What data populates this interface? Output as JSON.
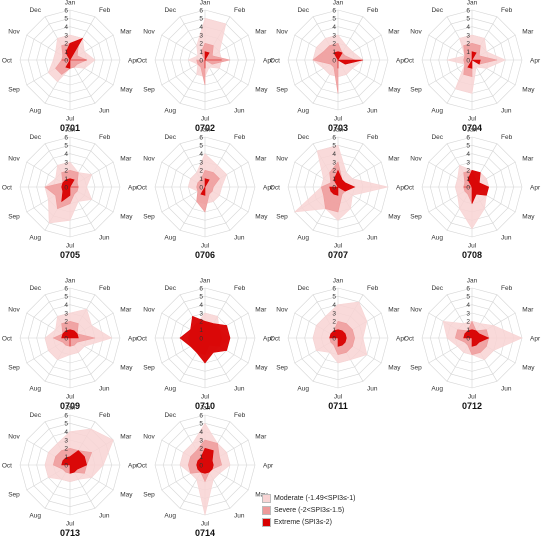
{
  "chart_data": {
    "type": "radar",
    "axes": [
      "Jan",
      "Feb",
      "Mar",
      "Apr",
      "May",
      "Jun",
      "Jul",
      "Aug",
      "Sep",
      "Oct",
      "Nov",
      "Dec"
    ],
    "radial_ticks": [
      "0",
      "1",
      "2",
      "3",
      "4",
      "5",
      "6"
    ],
    "rmax": 6,
    "legend": [
      {
        "key": "moderate",
        "label": "Moderate (-1.49<SPI3≤-1)",
        "color": "#f8d4d4"
      },
      {
        "key": "severe",
        "label": "Severe (-2<SPI3≤-1.5)",
        "color": "#ee9a9a"
      },
      {
        "key": "extreme",
        "label": "Extreme (SPI3≤-2)",
        "color": "#d80000"
      }
    ],
    "charts": [
      {
        "id": "0701",
        "moderate": [
          3,
          3,
          2,
          3,
          2,
          1,
          1,
          3,
          3,
          2,
          2,
          3
        ],
        "severe": [
          2,
          2,
          1,
          2,
          1,
          1,
          1,
          2,
          2,
          1,
          1,
          2
        ],
        "extreme": [
          2,
          3,
          0,
          2,
          0,
          0,
          1,
          1,
          0,
          1,
          0,
          1
        ]
      },
      {
        "id": "0702",
        "moderate": [
          5,
          5,
          2,
          2,
          2,
          1,
          2,
          2,
          1,
          2,
          1,
          2
        ],
        "severe": [
          2,
          2,
          1,
          3,
          1,
          0,
          3,
          1,
          1,
          1,
          0,
          1
        ],
        "extreme": [
          1,
          1,
          0,
          2,
          0,
          0,
          1,
          0,
          0,
          0,
          0,
          0
        ]
      },
      {
        "id": "0703",
        "moderate": [
          3,
          2,
          2,
          3,
          2,
          2,
          2,
          2,
          2,
          3,
          3,
          3
        ],
        "severe": [
          2,
          1,
          1,
          2,
          1,
          0,
          4,
          1,
          1,
          3,
          2,
          2
        ],
        "extreme": [
          1,
          1,
          0,
          3,
          1,
          0,
          1,
          0,
          0,
          0,
          0,
          1
        ]
      },
      {
        "id": "0704",
        "moderate": [
          3,
          3,
          2,
          4,
          2,
          1,
          4,
          4,
          1,
          3,
          1,
          3
        ],
        "severe": [
          2,
          2,
          1,
          3,
          1,
          0,
          2,
          2,
          1,
          1,
          1,
          2
        ],
        "extreme": [
          1,
          1,
          0,
          1,
          1,
          0,
          1,
          1,
          0,
          0,
          0,
          0
        ]
      },
      {
        "id": "0705",
        "moderate": [
          3,
          2,
          3,
          2,
          3,
          2,
          4,
          5,
          3,
          3,
          2,
          3
        ],
        "severe": [
          2,
          2,
          1,
          1,
          1,
          1,
          2,
          3,
          2,
          3,
          1,
          2
        ],
        "extreme": [
          1,
          1,
          0,
          1,
          0,
          0,
          1,
          2,
          1,
          1,
          1,
          1
        ]
      },
      {
        "id": "0706",
        "moderate": [
          4,
          3,
          3,
          2,
          2,
          2,
          2,
          2,
          1,
          2,
          2,
          2
        ],
        "severe": [
          2,
          2,
          2,
          1,
          1,
          1,
          3,
          2,
          1,
          1,
          1,
          1
        ],
        "extreme": [
          1,
          1,
          0,
          0,
          0,
          0,
          1,
          1,
          0,
          0,
          0,
          0
        ]
      },
      {
        "id": "0707",
        "moderate": [
          5,
          2,
          2,
          6,
          2,
          3,
          4,
          3,
          6,
          2,
          2,
          5
        ],
        "severe": [
          3,
          1,
          1,
          1,
          1,
          1,
          3,
          3,
          2,
          2,
          1,
          2
        ],
        "extreme": [
          2,
          1,
          1,
          2,
          1,
          0,
          1,
          1,
          1,
          1,
          0,
          1
        ]
      },
      {
        "id": "0708",
        "moderate": [
          2,
          2,
          2,
          2,
          2,
          3,
          5,
          3,
          2,
          2,
          2,
          3
        ],
        "severe": [
          2,
          1,
          1,
          2,
          1,
          1,
          2,
          1,
          1,
          1,
          1,
          2
        ],
        "extreme": [
          2,
          2,
          1,
          2,
          2,
          1,
          2,
          0,
          0,
          1,
          0,
          1
        ]
      },
      {
        "id": "0709",
        "moderate": [
          3,
          4,
          3,
          5,
          2,
          2,
          2,
          3,
          3,
          3,
          2,
          3
        ],
        "severe": [
          2,
          2,
          1,
          3,
          1,
          1,
          1,
          1,
          1,
          2,
          1,
          2
        ],
        "extreme": [
          1,
          1,
          1,
          1,
          0,
          0,
          1,
          0,
          0,
          1,
          1,
          1
        ]
      },
      {
        "id": "0710",
        "moderate": [
          3,
          3,
          2,
          3,
          2,
          2,
          2,
          2,
          2,
          2,
          2,
          2
        ],
        "severe": [
          2,
          2,
          2,
          2,
          2,
          1,
          2,
          2,
          2,
          2,
          2,
          2
        ],
        "extreme": [
          2,
          2,
          3,
          3,
          3,
          2,
          3,
          2,
          2,
          3,
          2,
          3
        ]
      },
      {
        "id": "0711",
        "moderate": [
          4,
          5,
          4,
          3,
          4,
          3,
          3,
          2,
          3,
          3,
          3,
          3
        ],
        "severe": [
          2,
          2,
          2,
          2,
          2,
          2,
          2,
          1,
          1,
          1,
          1,
          1
        ],
        "extreme": [
          1,
          1,
          1,
          1,
          1,
          1,
          1,
          0,
          0,
          1,
          1,
          1
        ]
      },
      {
        "id": "0712",
        "moderate": [
          2,
          2,
          3,
          6,
          3,
          3,
          2,
          2,
          2,
          3,
          4,
          2
        ],
        "severe": [
          2,
          1,
          2,
          2,
          2,
          2,
          2,
          1,
          1,
          2,
          2,
          1
        ],
        "extreme": [
          1,
          1,
          1,
          2,
          1,
          1,
          1,
          0,
          0,
          1,
          1,
          1
        ]
      },
      {
        "id": "0713",
        "moderate": [
          4,
          5,
          6,
          4,
          3,
          2,
          2,
          2,
          3,
          3,
          3,
          3
        ],
        "severe": [
          2,
          2,
          3,
          2,
          2,
          1,
          1,
          1,
          1,
          2,
          2,
          2
        ],
        "extreme": [
          1,
          2,
          2,
          2,
          1,
          1,
          1,
          0,
          0,
          1,
          1,
          1
        ]
      },
      {
        "id": "0714",
        "moderate": [
          5,
          3,
          3,
          3,
          2,
          2,
          6,
          2,
          2,
          3,
          3,
          3
        ],
        "severe": [
          3,
          3,
          2,
          2,
          1,
          1,
          2,
          1,
          2,
          2,
          2,
          2
        ],
        "extreme": [
          2,
          2,
          1,
          1,
          1,
          1,
          1,
          1,
          1,
          1,
          1,
          1
        ]
      }
    ]
  }
}
